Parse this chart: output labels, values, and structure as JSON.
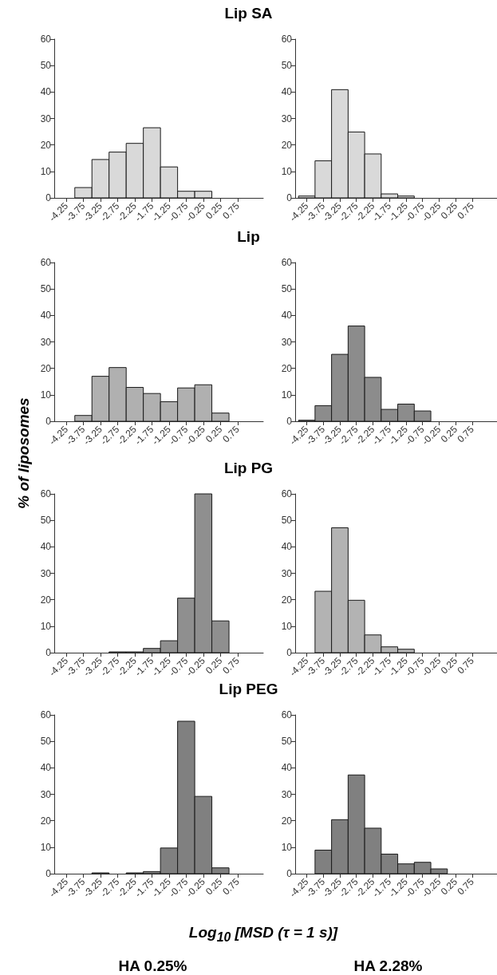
{
  "chart_data": [
    {
      "type": "histogram",
      "title": "Lip SA",
      "bins": [
        -4.5,
        -4,
        -3.5,
        -3,
        -2.5,
        -2,
        -1.5,
        -1,
        -0.5,
        0,
        0.5,
        1
      ],
      "values": [
        0,
        3.9,
        14.5,
        17.3,
        20.6,
        26.5,
        11.7,
        2.5,
        2.5,
        0,
        0
      ],
      "color": "#d9d9d9",
      "xlim": [
        -4.6,
        1.5
      ],
      "xticks": [
        -4.25,
        -3.75,
        -3.25,
        -2.75,
        -2.25,
        -1.75,
        -1.25,
        -0.75,
        -0.25,
        0.25,
        0.75
      ],
      "ylim": [
        0,
        60
      ],
      "yticks": [
        0,
        10,
        20,
        30,
        40,
        50,
        60
      ]
    },
    {
      "type": "histogram",
      "bins": [
        -4.5,
        -4,
        -3.5,
        -3,
        -2.5,
        -2,
        -1.5,
        -1,
        -0.5,
        0,
        0.5,
        1
      ],
      "values": [
        0.7,
        14,
        40.9,
        24.9,
        16.6,
        1.5,
        0.7,
        0,
        0,
        0,
        0
      ],
      "color": "#d9d9d9",
      "xlim": [
        -4.6,
        1.5
      ],
      "xticks": [
        -4.25,
        -3.75,
        -3.25,
        -2.75,
        -2.25,
        -1.75,
        -1.25,
        -0.75,
        -0.25,
        0.25,
        0.75
      ],
      "ylim": [
        0,
        60
      ],
      "yticks": [
        0,
        10,
        20,
        30,
        40,
        50,
        60
      ]
    },
    {
      "type": "histogram",
      "title": "Lip",
      "ylabel": "% of liposomes",
      "bins": [
        -4.5,
        -4,
        -3.5,
        -3,
        -2.5,
        -2,
        -1.5,
        -1,
        -0.5,
        0,
        0.5,
        1
      ],
      "values": [
        0,
        2.2,
        17,
        20.3,
        12.8,
        10.5,
        7.4,
        12.6,
        13.8,
        3.1,
        0
      ],
      "color": "#b0b0b0",
      "xlim": [
        -4.6,
        1.5
      ],
      "xticks": [
        -4.25,
        -3.75,
        -3.25,
        -2.75,
        -2.25,
        -1.75,
        -1.25,
        -0.75,
        -0.25,
        0.25,
        0.75
      ],
      "ylim": [
        0,
        60
      ],
      "yticks": [
        0,
        10,
        20,
        30,
        40,
        50,
        60
      ]
    },
    {
      "type": "histogram",
      "bins": [
        -4.5,
        -4,
        -3.5,
        -3,
        -2.5,
        -2,
        -1.5,
        -1,
        -0.5,
        0,
        0.5,
        1
      ],
      "values": [
        0.4,
        5.9,
        25.3,
        36,
        16.6,
        4.5,
        6.5,
        3.9,
        0,
        0,
        0
      ],
      "color": "#8c8c8c",
      "xlim": [
        -4.6,
        1.5
      ],
      "xticks": [
        -4.25,
        -3.75,
        -3.25,
        -2.75,
        -2.25,
        -1.75,
        -1.25,
        -0.75,
        -0.25,
        0.25,
        0.75
      ],
      "ylim": [
        0,
        60
      ],
      "yticks": [
        0,
        10,
        20,
        30,
        40,
        50,
        60
      ]
    },
    {
      "type": "histogram",
      "title": "Lip PG",
      "bins": [
        -4.5,
        -4,
        -3.5,
        -3,
        -2.5,
        -2,
        -1.5,
        -1,
        -0.5,
        0,
        0.5,
        1
      ],
      "values": [
        0,
        0,
        0,
        0.3,
        0.3,
        1.6,
        4.5,
        20.6,
        60,
        12,
        0
      ],
      "color": "#8f8f8f",
      "xlim": [
        -4.6,
        1.5
      ],
      "xticks": [
        -4.25,
        -3.75,
        -3.25,
        -2.75,
        -2.25,
        -1.75,
        -1.25,
        -0.75,
        -0.25,
        0.25,
        0.75
      ],
      "ylim": [
        0,
        60
      ],
      "yticks": [
        0,
        10,
        20,
        30,
        40,
        50,
        60
      ]
    },
    {
      "type": "histogram",
      "bins": [
        -4.5,
        -4,
        -3.5,
        -3,
        -2.5,
        -2,
        -1.5,
        -1,
        -0.5,
        0,
        0.5,
        1
      ],
      "values": [
        0,
        23.2,
        47.2,
        19.8,
        6.7,
        2.2,
        1.3,
        0,
        0,
        0,
        0
      ],
      "color": "#b3b3b3",
      "xlim": [
        -4.6,
        1.5
      ],
      "xticks": [
        -4.25,
        -3.75,
        -3.25,
        -2.75,
        -2.25,
        -1.75,
        -1.25,
        -0.75,
        -0.25,
        0.25,
        0.75
      ],
      "ylim": [
        0,
        60
      ],
      "yticks": [
        0,
        10,
        20,
        30,
        40,
        50,
        60
      ]
    },
    {
      "type": "histogram",
      "title": "Lip PEG",
      "xlabel": "Log$_{10}$ [MSD (τ = 1 s)]",
      "annotations": [
        "HA 0.25%"
      ],
      "bins": [
        -4.5,
        -4,
        -3.5,
        -3,
        -2.5,
        -2,
        -1.5,
        -1,
        -0.5,
        0,
        0.5,
        1
      ],
      "values": [
        0,
        0,
        0.3,
        0,
        0.3,
        0.8,
        9.7,
        57.6,
        29.2,
        2.2,
        0
      ],
      "color": "#808080",
      "xlim": [
        -4.6,
        1.5
      ],
      "xticks": [
        -4.25,
        -3.75,
        -3.25,
        -2.75,
        -2.25,
        -1.75,
        -1.25,
        -0.75,
        -0.25,
        0.25,
        0.75
      ],
      "ylim": [
        0,
        60
      ],
      "yticks": [
        0,
        10,
        20,
        30,
        40,
        50,
        60
      ]
    },
    {
      "type": "histogram",
      "annotations": [
        "HA 2.28%"
      ],
      "bins": [
        -4.5,
        -4,
        -3.5,
        -3,
        -2.5,
        -2,
        -1.5,
        -1,
        -0.5,
        0,
        0.5,
        1
      ],
      "values": [
        0,
        8.9,
        20.4,
        37.3,
        17.2,
        7.4,
        3.7,
        4.3,
        1.8,
        0,
        0
      ],
      "color": "#808080",
      "xlim": [
        -4.6,
        1.5
      ],
      "xticks": [
        -4.25,
        -3.75,
        -3.25,
        -2.75,
        -2.25,
        -1.75,
        -1.25,
        -0.75,
        -0.25,
        0.25,
        0.75
      ],
      "ylim": [
        0,
        60
      ],
      "yticks": [
        0,
        10,
        20,
        30,
        40,
        50,
        60
      ]
    }
  ]
}
